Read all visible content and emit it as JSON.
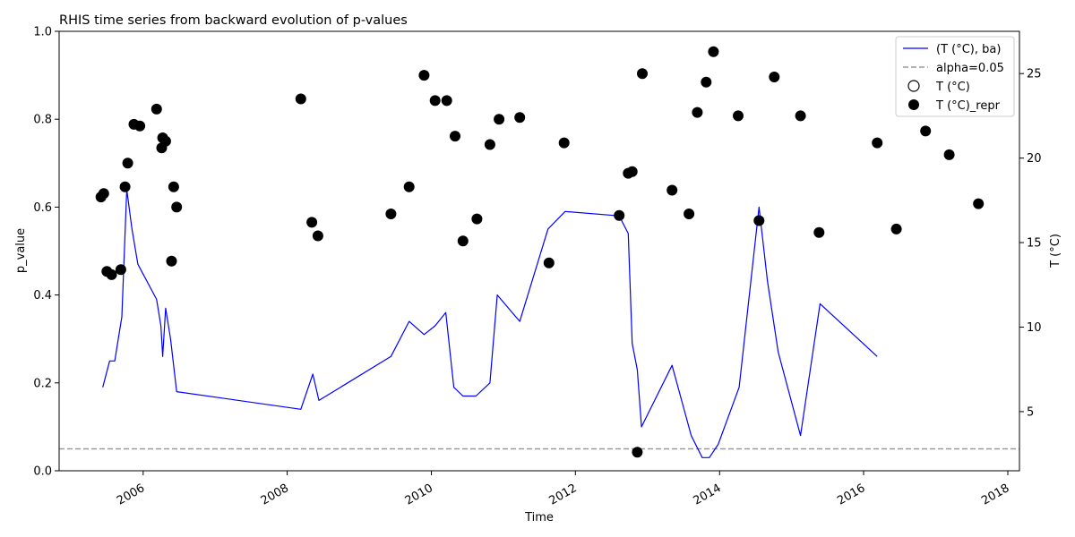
{
  "chart_data": {
    "type": "line",
    "title": "RHIS time series from backward evolution of p-values",
    "xlabel": "Time",
    "ylabel": "p_value",
    "y2label": "T (°C)",
    "xlim": [
      "2004-11-01",
      "2018-03-01"
    ],
    "ylim": [
      0,
      1
    ],
    "y2lim": [
      1.5,
      27.5
    ],
    "x_ticks": [
      "2006",
      "2008",
      "2010",
      "2012",
      "2014",
      "2016",
      "2018"
    ],
    "x_tick_dates": [
      "2006-01-01",
      "2008-01-01",
      "2010-01-01",
      "2012-01-01",
      "2014-01-01",
      "2016-01-01",
      "2018-01-01"
    ],
    "y_ticks": [
      "0.0",
      "0.2",
      "0.4",
      "0.6",
      "0.8",
      "1.0"
    ],
    "y_tick_values": [
      0,
      0.2,
      0.4,
      0.6,
      0.8,
      1.0
    ],
    "y2_ticks": [
      "5",
      "10",
      "15",
      "20",
      "25"
    ],
    "y2_tick_values": [
      5,
      10,
      15,
      20,
      25
    ],
    "alpha": 0.05,
    "grid": false,
    "legend_position": "top-right",
    "legend": [
      {
        "label": "(T (°C), ba)",
        "kind": "line",
        "color": "#0000ff"
      },
      {
        "label": "alpha=0.05",
        "kind": "dashed",
        "color": "#999999"
      },
      {
        "label": "T (°C)",
        "kind": "open-circle",
        "color": "#000000"
      },
      {
        "label": "T (°C)_repr",
        "kind": "filled-circle",
        "color": "#000000"
      }
    ],
    "series": [
      {
        "name": "(T (°C), ba)",
        "color": "#0000ff",
        "axis": "left",
        "points": [
          [
            "2005-06-10",
            0.19
          ],
          [
            "2005-07-15",
            0.25
          ],
          [
            "2005-08-10",
            0.25
          ],
          [
            "2005-09-15",
            0.35
          ],
          [
            "2005-10-10",
            0.64
          ],
          [
            "2005-11-05",
            0.55
          ],
          [
            "2005-12-05",
            0.47
          ],
          [
            "2006-03-10",
            0.39
          ],
          [
            "2006-04-01",
            0.33
          ],
          [
            "2006-04-10",
            0.26
          ],
          [
            "2006-04-25",
            0.37
          ],
          [
            "2006-05-20",
            0.3
          ],
          [
            "2006-06-20",
            0.18
          ],
          [
            "2008-03-10",
            0.14
          ],
          [
            "2008-05-10",
            0.22
          ],
          [
            "2008-06-10",
            0.16
          ],
          [
            "2009-06-10",
            0.26
          ],
          [
            "2009-09-10",
            0.34
          ],
          [
            "2009-11-25",
            0.31
          ],
          [
            "2010-01-20",
            0.33
          ],
          [
            "2010-03-15",
            0.36
          ],
          [
            "2010-04-25",
            0.19
          ],
          [
            "2010-06-10",
            0.17
          ],
          [
            "2010-08-15",
            0.17
          ],
          [
            "2010-10-25",
            0.2
          ],
          [
            "2010-12-01",
            0.4
          ],
          [
            "2011-03-25",
            0.34
          ],
          [
            "2011-08-15",
            0.55
          ],
          [
            "2011-11-10",
            0.59
          ],
          [
            "2012-08-10",
            0.58
          ],
          [
            "2012-09-25",
            0.54
          ],
          [
            "2012-10-15",
            0.29
          ],
          [
            "2012-11-10",
            0.23
          ],
          [
            "2012-12-01",
            0.1
          ],
          [
            "2013-05-05",
            0.24
          ],
          [
            "2013-08-10",
            0.08
          ],
          [
            "2013-10-05",
            0.03
          ],
          [
            "2013-11-10",
            0.03
          ],
          [
            "2013-12-25",
            0.06
          ],
          [
            "2014-04-10",
            0.19
          ],
          [
            "2014-07-20",
            0.6
          ],
          [
            "2014-09-01",
            0.43
          ],
          [
            "2014-10-25",
            0.27
          ],
          [
            "2015-02-15",
            0.08
          ],
          [
            "2015-05-25",
            0.38
          ],
          [
            "2016-03-10",
            0.26
          ]
        ]
      },
      {
        "name": "T (°C)_repr",
        "color": "#000000",
        "axis": "right",
        "points": [
          [
            "2005-06-01",
            17.7
          ],
          [
            "2005-06-15",
            17.9
          ],
          [
            "2005-07-01",
            13.3
          ],
          [
            "2005-07-25",
            13.1
          ],
          [
            "2005-09-10",
            13.4
          ],
          [
            "2005-10-01",
            18.3
          ],
          [
            "2005-10-15",
            19.7
          ],
          [
            "2005-11-15",
            22.0
          ],
          [
            "2005-12-15",
            21.9
          ],
          [
            "2006-03-10",
            22.9
          ],
          [
            "2006-04-05",
            20.6
          ],
          [
            "2006-04-10",
            21.2
          ],
          [
            "2006-04-25",
            21.0
          ],
          [
            "2006-05-25",
            13.9
          ],
          [
            "2006-06-05",
            18.3
          ],
          [
            "2006-06-20",
            17.1
          ],
          [
            "2008-03-10",
            23.5
          ],
          [
            "2008-05-05",
            16.2
          ],
          [
            "2008-06-05",
            15.4
          ],
          [
            "2009-06-10",
            16.7
          ],
          [
            "2009-09-10",
            18.3
          ],
          [
            "2009-11-25",
            24.9
          ],
          [
            "2010-01-20",
            23.4
          ],
          [
            "2010-03-20",
            23.4
          ],
          [
            "2010-05-01",
            21.3
          ],
          [
            "2010-06-10",
            15.1
          ],
          [
            "2010-08-20",
            16.4
          ],
          [
            "2010-10-25",
            20.8
          ],
          [
            "2010-12-10",
            22.3
          ],
          [
            "2011-03-25",
            22.4
          ],
          [
            "2011-08-20",
            13.8
          ],
          [
            "2011-11-05",
            20.9
          ],
          [
            "2012-08-10",
            16.6
          ],
          [
            "2012-09-25",
            19.1
          ],
          [
            "2012-10-15",
            19.2
          ],
          [
            "2012-11-10",
            2.6
          ],
          [
            "2012-12-05",
            25.0
          ],
          [
            "2013-05-05",
            18.1
          ],
          [
            "2013-07-30",
            16.7
          ],
          [
            "2013-09-10",
            22.7
          ],
          [
            "2013-10-25",
            24.5
          ],
          [
            "2013-12-01",
            26.3
          ],
          [
            "2014-04-05",
            22.5
          ],
          [
            "2014-07-20",
            16.3
          ],
          [
            "2014-10-05",
            24.8
          ],
          [
            "2015-02-15",
            22.5
          ],
          [
            "2015-05-20",
            15.6
          ],
          [
            "2016-03-10",
            20.9
          ],
          [
            "2016-06-15",
            15.8
          ],
          [
            "2016-11-10",
            21.6
          ],
          [
            "2017-03-10",
            20.2
          ],
          [
            "2017-08-05",
            17.3
          ]
        ]
      }
    ]
  }
}
